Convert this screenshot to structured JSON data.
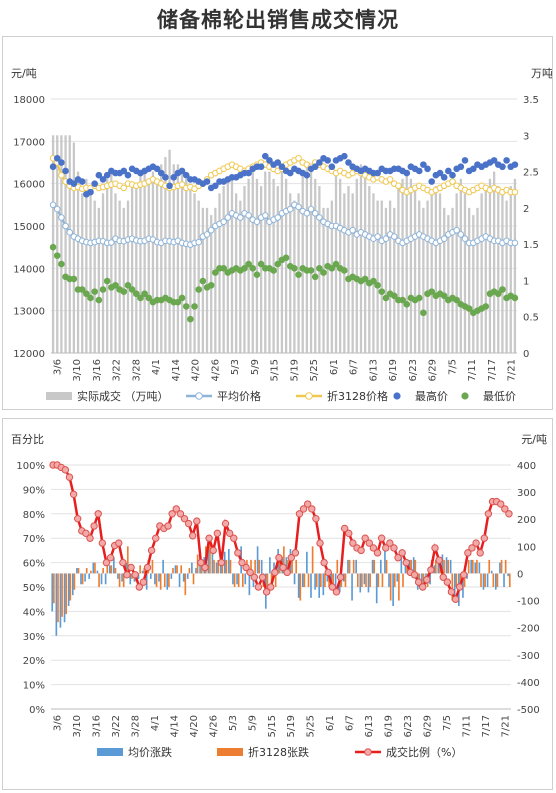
{
  "title": "储备棉轮出销售成交情况",
  "chart_data": [
    {
      "type": "bar+line+scatter",
      "y_left_label": "元/吨",
      "y_right_label": "万吨",
      "ylim_left": [
        12000,
        18000
      ],
      "yticks_left": [
        "12000",
        "13000",
        "14000",
        "15000",
        "16000",
        "17000",
        "18000"
      ],
      "ylim_right": [
        0,
        3.5
      ],
      "yticks_right": [
        "0",
        "0.5",
        "1",
        "1.5",
        "2",
        "2.5",
        "3",
        "3.5"
      ],
      "x_ticks": [
        "3/6",
        "3/10",
        "3/16",
        "3/22",
        "3/28",
        "4/1",
        "4/14",
        "4/20",
        "4/26",
        "5/3",
        "5/9",
        "5/15",
        "5/19",
        "5/25",
        "6/1",
        "6/7",
        "6/13",
        "6/19",
        "6/23",
        "6/29",
        "7/5",
        "7/11",
        "7/17",
        "7/21"
      ],
      "grid": true,
      "legend_position": "bottom",
      "series": [
        {
          "name": "实际成交 （万吨）",
          "kind": "bar",
          "axis": "right",
          "color": "#c8c8c8",
          "values": [
            3,
            3,
            3,
            3,
            3,
            2.9,
            2.5,
            2.2,
            2.4,
            2.2,
            2.1,
            2.0,
            2.2,
            2.4,
            2.5,
            2.2,
            2.1,
            2.0,
            2.1,
            2.3,
            2.3,
            2.5,
            2.5,
            2.4,
            2.5,
            2.4,
            2.6,
            2.7,
            2.8,
            2.6,
            2.6,
            2.5,
            2.4,
            2.3,
            2.2,
            2.1,
            2.0,
            2.0,
            1.9,
            2.0,
            2.2,
            2.3,
            2.4,
            2.4,
            2.2,
            2.1,
            2.3,
            2.4,
            2.5,
            2.4,
            2.3,
            2.5,
            2.5,
            2.4,
            2.3,
            2.5,
            2.4,
            2.2,
            2.1,
            2.2,
            2.5,
            2.6,
            2.5,
            2.4,
            2.3,
            2.0,
            2.0,
            2.1,
            2.5,
            2.4,
            2.2,
            2.3,
            2.2,
            2.4,
            2.6,
            2.5,
            2.3,
            2.2,
            2.1,
            2.1,
            2.0,
            2.1,
            2.0,
            2.3,
            2.4,
            2.5,
            2.4,
            2.3,
            2.1,
            2.0,
            2.1,
            2.2,
            2.3,
            2.2,
            2.0,
            1.9,
            2.0,
            2.2,
            2.4,
            2.2,
            2.0,
            1.9,
            2.0,
            2.2,
            2.3,
            2.4,
            2.5,
            2.3,
            2.2,
            2.1,
            2.3,
            2.4
          ]
        },
        {
          "name": "平均价格",
          "kind": "line",
          "axis": "left",
          "color": "#8fb4d9",
          "values": [
            15500,
            15400,
            15200,
            15000,
            14850,
            14750,
            14700,
            14650,
            14620,
            14600,
            14620,
            14650,
            14640,
            14600,
            14610,
            14700,
            14650,
            14640,
            14680,
            14700,
            14660,
            14640,
            14650,
            14700,
            14680,
            14620,
            14600,
            14650,
            14640,
            14620,
            14650,
            14600,
            14580,
            14560,
            14600,
            14620,
            14750,
            14800,
            14900,
            15000,
            15050,
            15100,
            15200,
            15300,
            15250,
            15200,
            15300,
            15250,
            15150,
            15100,
            15200,
            15250,
            15100,
            15150,
            15200,
            15300,
            15350,
            15400,
            15500,
            15450,
            15350,
            15300,
            15400,
            15300,
            15200,
            15100,
            15050,
            15000,
            15000,
            14950,
            14900,
            14850,
            14900,
            14800,
            14850,
            14800,
            14750,
            14700,
            14750,
            14650,
            14700,
            14800,
            14750,
            14650,
            14600,
            14650,
            14700,
            14750,
            14800,
            14750,
            14700,
            14650,
            14600,
            14650,
            14700,
            14800,
            14850,
            14900,
            14800,
            14700,
            14600,
            14600,
            14650,
            14700,
            14750,
            14700,
            14650,
            14650,
            14600,
            14650,
            14600,
            14600
          ]
        },
        {
          "name": "折3128价格",
          "kind": "line",
          "axis": "left",
          "color": "#f0c850",
          "values": [
            16600,
            16500,
            16200,
            16050,
            15950,
            15900,
            15920,
            15880,
            15900,
            15900,
            15950,
            15900,
            15920,
            15950,
            15980,
            16000,
            15950,
            15900,
            16000,
            15980,
            15950,
            15980,
            16000,
            16050,
            16100,
            16050,
            16000,
            15950,
            15900,
            15920,
            15950,
            15980,
            15900,
            15920,
            15880,
            15950,
            16000,
            16100,
            16200,
            16250,
            16300,
            16350,
            16400,
            16450,
            16400,
            16350,
            16300,
            16350,
            16400,
            16450,
            16500,
            16450,
            16400,
            16350,
            16300,
            16350,
            16450,
            16500,
            16550,
            16600,
            16500,
            16450,
            16400,
            16500,
            16450,
            16400,
            16350,
            16300,
            16250,
            16300,
            16250,
            16200,
            16250,
            16300,
            16250,
            16200,
            16150,
            16100,
            16150,
            16100,
            16050,
            16100,
            16000,
            15950,
            15850,
            15800,
            15850,
            15900,
            15950,
            15900,
            15850,
            15800,
            15850,
            15900,
            15950,
            16000,
            16050,
            15950,
            15900,
            15850,
            15800,
            15850,
            15900,
            15950,
            15900,
            15850,
            15900,
            15850,
            15800,
            15850,
            15800,
            15800
          ]
        },
        {
          "name": "最高价",
          "kind": "scatter",
          "axis": "left",
          "color": "#4a72c8",
          "values": [
            16400,
            16600,
            16500,
            16300,
            16050,
            16000,
            16100,
            16050,
            15750,
            15800,
            16000,
            16200,
            16100,
            16200,
            16300,
            16250,
            16250,
            16300,
            16200,
            16350,
            16300,
            16250,
            16300,
            16350,
            16400,
            16350,
            16250,
            16150,
            15950,
            16150,
            16250,
            16300,
            16200,
            16100,
            16100,
            16050,
            16000,
            16050,
            15900,
            15950,
            16050,
            16050,
            16100,
            16150,
            16150,
            16200,
            16250,
            16250,
            16350,
            16400,
            16400,
            16650,
            16550,
            16450,
            16500,
            16400,
            16300,
            16250,
            16350,
            16300,
            16250,
            16200,
            16350,
            16400,
            16500,
            16600,
            16550,
            16400,
            16550,
            16600,
            16650,
            16500,
            16400,
            16350,
            16300,
            16350,
            16300,
            16250,
            16250,
            16350,
            16300,
            16300,
            16350,
            16350,
            16300,
            16250,
            16400,
            16350,
            16300,
            16450,
            16350,
            16050,
            16200,
            16250,
            16150,
            16300,
            16200,
            16350,
            16400,
            16550,
            16300,
            16350,
            16450,
            16400,
            16450,
            16500,
            16550,
            16450,
            16400,
            16550,
            16400,
            16450
          ]
        },
        {
          "name": "最低价",
          "kind": "scatter",
          "axis": "left",
          "color": "#6aa84f",
          "values": [
            14500,
            14300,
            14100,
            13800,
            13750,
            13750,
            13500,
            13500,
            13400,
            13300,
            13450,
            13250,
            13500,
            13700,
            13550,
            13600,
            13500,
            13450,
            13600,
            13500,
            13400,
            13300,
            13400,
            13300,
            13200,
            13250,
            13250,
            13300,
            13250,
            13200,
            13200,
            13300,
            13100,
            12800,
            13100,
            13500,
            13700,
            13550,
            13600,
            13900,
            14000,
            14000,
            13900,
            13950,
            14000,
            13950,
            14000,
            14100,
            14000,
            13850,
            14100,
            14000,
            14000,
            13950,
            14100,
            14200,
            14250,
            14050,
            14000,
            13850,
            14000,
            13950,
            13950,
            13800,
            14000,
            13900,
            14050,
            14000,
            14100,
            14000,
            13950,
            13750,
            13800,
            13750,
            13700,
            13750,
            13650,
            13700,
            13600,
            13450,
            13300,
            13400,
            13350,
            13250,
            13250,
            13150,
            13300,
            13250,
            13300,
            12950,
            13400,
            13450,
            13350,
            13400,
            13350,
            13250,
            13300,
            13250,
            13150,
            13100,
            13050,
            12950,
            13000,
            13050,
            13100,
            13400,
            13450,
            13400,
            13500,
            13300,
            13350,
            13300
          ]
        }
      ]
    },
    {
      "type": "bar+line",
      "y_left_label": "百分比",
      "y_right_label": "元/吨",
      "ylim_left": [
        0,
        100
      ],
      "yticks_left": [
        "0%",
        "10%",
        "20%",
        "30%",
        "40%",
        "50%",
        "60%",
        "70%",
        "80%",
        "90%",
        "100%"
      ],
      "ylim_right": [
        -500,
        400
      ],
      "yticks_right": [
        "-500",
        "-400",
        "-300",
        "-200",
        "-100",
        "0",
        "100",
        "200",
        "300",
        "400"
      ],
      "x_ticks": [
        "3/6",
        "3/10",
        "3/16",
        "3/22",
        "3/28",
        "4/1",
        "4/14",
        "4/20",
        "4/26",
        "5/3",
        "5/9",
        "5/15",
        "5/19",
        "5/25",
        "6/1",
        "6/7",
        "6/13",
        "6/19",
        "6/23",
        "6/29",
        "7/5",
        "7/11",
        "7/17",
        "7/21"
      ],
      "grid": true,
      "legend_position": "bottom",
      "series": [
        {
          "name": "均价涨跌",
          "kind": "bar",
          "axis": "right",
          "color": "#5b9bd5",
          "values": [
            -140,
            -230,
            -200,
            -180,
            -120,
            -80,
            20,
            -40,
            -30,
            -20,
            40,
            10,
            -40,
            -40,
            30,
            60,
            -20,
            -30,
            40,
            -40,
            -30,
            -20,
            10,
            -60,
            -20,
            -40,
            -30,
            50,
            -60,
            -20,
            30,
            -50,
            -30,
            -20,
            40,
            20,
            80,
            60,
            110,
            100,
            40,
            50,
            80,
            90,
            -40,
            -40,
            100,
            -40,
            -80,
            -50,
            100,
            50,
            -130,
            60,
            40,
            90,
            60,
            60,
            90,
            -40,
            -90,
            -50,
            80,
            -90,
            -60,
            -90,
            -80,
            -30,
            -30,
            -60,
            -70,
            -30,
            50,
            -100,
            50,
            -70,
            -40,
            -70,
            50,
            -110,
            50,
            110,
            -50,
            -120,
            -30,
            60,
            50,
            50,
            60,
            -60,
            -50,
            -40,
            -40,
            30,
            40,
            70,
            60,
            50,
            -100,
            -120,
            -90,
            -20,
            50,
            40,
            40,
            -60,
            -50,
            10,
            -60,
            40,
            -50,
            -10
          ]
        },
        {
          "name": "折3128张跌",
          "kind": "bar",
          "axis": "right",
          "color": "#ed7d31",
          "values": [
            -110,
            -180,
            -160,
            -150,
            -100,
            -60,
            20,
            -40,
            20,
            10,
            40,
            -50,
            20,
            30,
            30,
            20,
            -50,
            -50,
            100,
            -20,
            -30,
            30,
            20,
            50,
            50,
            -50,
            -60,
            -50,
            -50,
            20,
            30,
            30,
            -80,
            20,
            -40,
            70,
            50,
            100,
            120,
            50,
            50,
            50,
            50,
            50,
            -50,
            -50,
            -50,
            50,
            50,
            50,
            50,
            -50,
            -50,
            -50,
            -50,
            50,
            100,
            50,
            50,
            50,
            -100,
            -50,
            -50,
            100,
            -50,
            -50,
            -50,
            -50,
            -50,
            50,
            -50,
            -50,
            50,
            50,
            -50,
            -50,
            -50,
            -50,
            50,
            -50,
            -50,
            50,
            -100,
            -50,
            -100,
            -50,
            50,
            50,
            50,
            -50,
            -50,
            -50,
            50,
            50,
            50,
            50,
            50,
            -100,
            -50,
            -50,
            -50,
            50,
            50,
            50,
            -50,
            -50,
            50,
            -50,
            -50,
            50,
            50,
            -50
          ]
        },
        {
          "name": "成交比例（%）",
          "kind": "line",
          "axis": "left",
          "color": "#e81e1e",
          "values": [
            100,
            100,
            99,
            98,
            95,
            88,
            78,
            73,
            72,
            70,
            75,
            80,
            68,
            60,
            62,
            67,
            68,
            60,
            55,
            58,
            55,
            50,
            52,
            58,
            65,
            70,
            75,
            74,
            75,
            80,
            82,
            80,
            78,
            76,
            71,
            77,
            60,
            58,
            70,
            65,
            72,
            60,
            76,
            72,
            70,
            64,
            60,
            58,
            56,
            54,
            50,
            54,
            48,
            50,
            56,
            62,
            58,
            56,
            62,
            64,
            80,
            82,
            84,
            82,
            78,
            68,
            60,
            56,
            50,
            48,
            54,
            74,
            72,
            68,
            66,
            65,
            70,
            68,
            66,
            64,
            70,
            66,
            68,
            66,
            62,
            64,
            60,
            56,
            55,
            52,
            50,
            53,
            57,
            66,
            61,
            54,
            52,
            48,
            45,
            50,
            55,
            64,
            66,
            68,
            64,
            70,
            80,
            85,
            85,
            84,
            82,
            80
          ]
        }
      ]
    }
  ]
}
